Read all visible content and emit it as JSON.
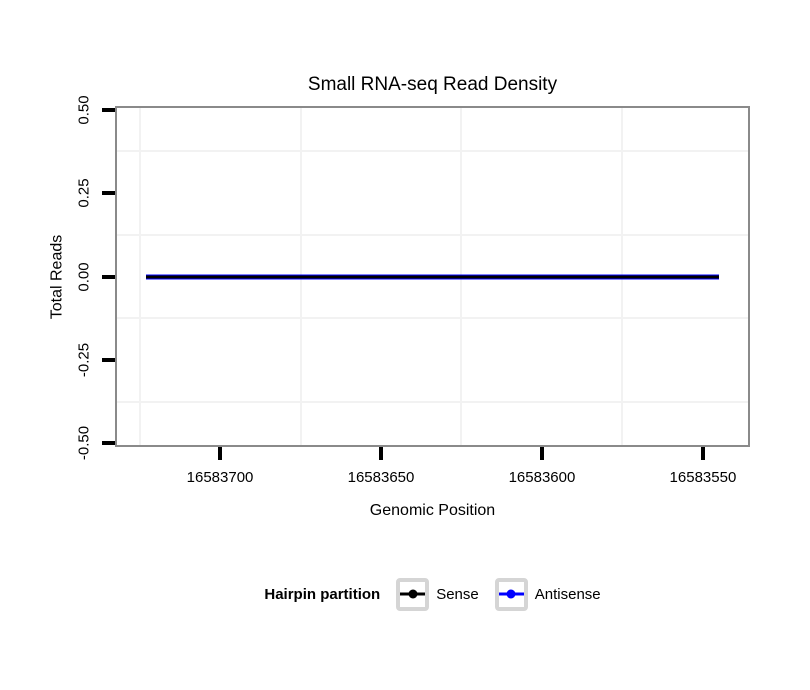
{
  "chart_data": {
    "type": "line",
    "title": "Small RNA-seq Read Density",
    "xlabel": "Genomic Position",
    "ylabel": "Total Reads",
    "x_axis": {
      "reversed": true,
      "domain": [
        16583732,
        16583536
      ],
      "ticks": [
        {
          "value": 16583700,
          "label": "16583700"
        },
        {
          "value": 16583650,
          "label": "16583650"
        },
        {
          "value": 16583600,
          "label": "16583600"
        },
        {
          "value": 16583550,
          "label": "16583550"
        }
      ],
      "minor_ticks": [
        16583725,
        16583675,
        16583625,
        16583575
      ]
    },
    "y_axis": {
      "domain": [
        0.505,
        -0.505
      ],
      "ticks": [
        {
          "value": 0.5,
          "label": "0.50"
        },
        {
          "value": 0.25,
          "label": "0.25"
        },
        {
          "value": 0,
          "label": "0.00"
        },
        {
          "value": -0.25,
          "label": "-0.25"
        },
        {
          "value": -0.5,
          "label": "-0.50"
        }
      ],
      "minor_ticks": [
        0.375,
        0.125,
        -0.125,
        -0.375
      ]
    },
    "series": [
      {
        "name": "Sense",
        "color": "#000000",
        "x": [
          16583723,
          16583545
        ],
        "y": [
          0,
          0
        ]
      },
      {
        "name": "Antisense",
        "color": "#0000ff",
        "x": [
          16583723,
          16583545
        ],
        "y": [
          0,
          0
        ]
      }
    ],
    "legend": {
      "title": "Hairpin partition",
      "entries": [
        {
          "label": "Sense",
          "color": "#000000"
        },
        {
          "label": "Antisense",
          "color": "#0000ff"
        }
      ]
    },
    "colors": {
      "panel_border": "#8a8a8a",
      "grid_minor": "#f2f2f2",
      "tick": "#000000"
    }
  }
}
